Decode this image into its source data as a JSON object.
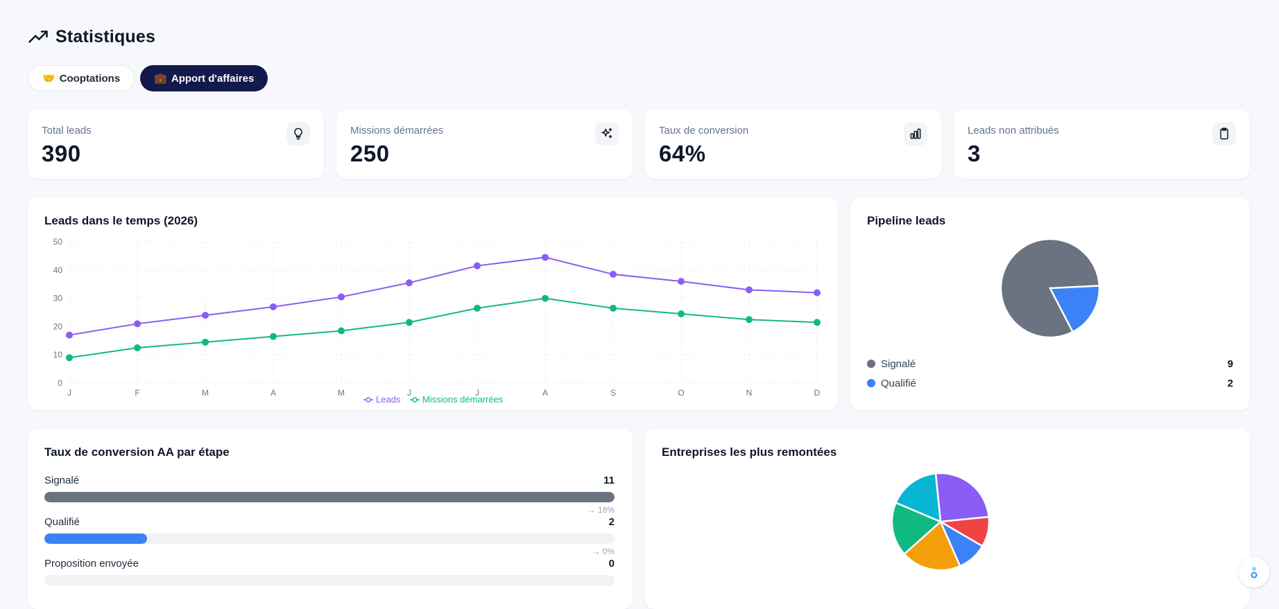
{
  "header": {
    "title": "Statistiques",
    "icon": "trending-up-icon"
  },
  "tabs": [
    {
      "emoji": "🤝",
      "label": "Cooptations",
      "active": false
    },
    {
      "emoji": "💼",
      "label": "Apport d'affaires",
      "active": true
    }
  ],
  "stats": [
    {
      "label": "Total leads",
      "value": "390",
      "icon": "lightbulb-icon"
    },
    {
      "label": "Missions démarrées",
      "value": "250",
      "icon": "sparkles-icon"
    },
    {
      "label": "Taux de conversion",
      "value": "64%",
      "icon": "bar-chart-icon"
    },
    {
      "label": "Leads non attribués",
      "value": "3",
      "icon": "clipboard-icon"
    }
  ],
  "line_chart": {
    "title": "Leads dans le temps (2026)"
  },
  "pipeline": {
    "title": "Pipeline leads",
    "items": [
      {
        "label": "Signalé",
        "value": "9",
        "color": "#6b7280"
      },
      {
        "label": "Qualifié",
        "value": "2",
        "color": "#3b82f6"
      }
    ]
  },
  "conversion": {
    "title": "Taux de conversion AA par étape",
    "stages": [
      {
        "label": "Signalé",
        "value": "11",
        "fill": 1.0,
        "color": "#6b7280",
        "pct": "→ 18%"
      },
      {
        "label": "Qualifié",
        "value": "2",
        "fill": 0.18,
        "color": "#3b82f6",
        "pct": "→ 0%"
      },
      {
        "label": "Proposition envoyée",
        "value": "0",
        "fill": 0,
        "color": "#8b5cf6",
        "pct": ""
      }
    ]
  },
  "companies": {
    "title": "Entreprises les plus remontées"
  },
  "chart_data": [
    {
      "type": "line",
      "title": "Leads dans le temps (2026)",
      "categories": [
        "J",
        "F",
        "M",
        "A",
        "M",
        "J",
        "J",
        "A",
        "S",
        "O",
        "N",
        "D"
      ],
      "series": [
        {
          "name": "Leads",
          "color": "#8b5cf6",
          "values": [
            17,
            21,
            24,
            27,
            30.5,
            35.5,
            41.5,
            44.5,
            38.5,
            36,
            33,
            32
          ]
        },
        {
          "name": "Missions démarrées",
          "color": "#10b981",
          "values": [
            9,
            12.5,
            14.5,
            16.5,
            18.5,
            21.5,
            26.5,
            30,
            26.5,
            24.5,
            22.5,
            21.5
          ]
        }
      ],
      "y_ticks": [
        "0",
        "10",
        "20",
        "30",
        "40",
        "50"
      ],
      "ylim": [
        0,
        50
      ],
      "grid": true,
      "legend": "bottom"
    },
    {
      "type": "pie",
      "title": "Pipeline leads",
      "labels": [
        "Signalé",
        "Qualifié"
      ],
      "values": [
        9,
        2
      ],
      "colors": [
        "#6b7280",
        "#3b82f6"
      ],
      "legend": "bottom"
    },
    {
      "type": "pie",
      "title": "Entreprises les plus remontées",
      "values": [
        25,
        10,
        10,
        20,
        18,
        17
      ],
      "colors": [
        "#8b5cf6",
        "#ef4444",
        "#3b82f6",
        "#f59e0b",
        "#10b981",
        "#06b6d4"
      ]
    }
  ]
}
